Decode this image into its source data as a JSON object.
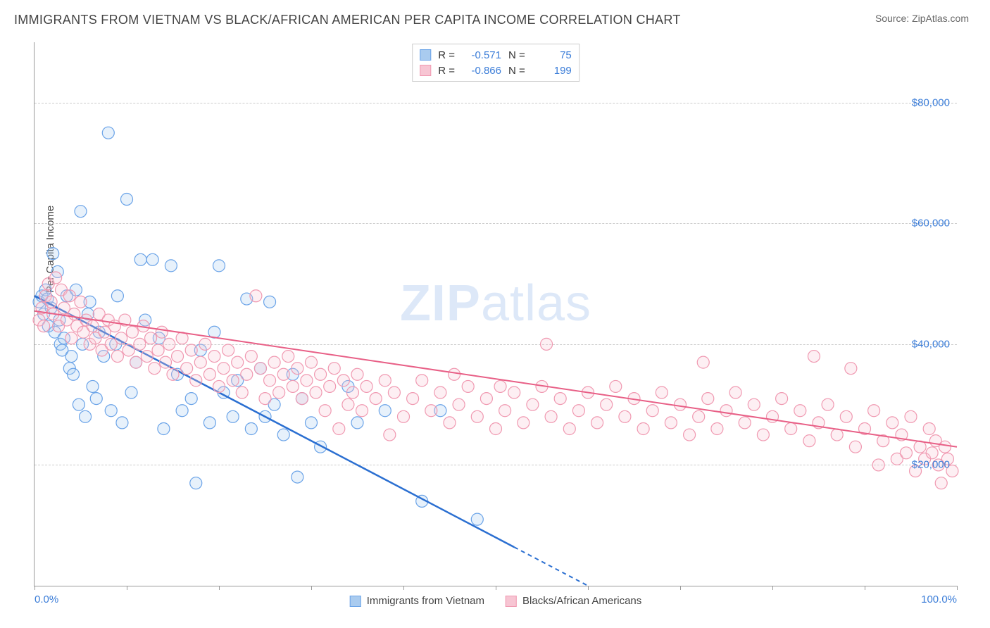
{
  "title": "IMMIGRANTS FROM VIETNAM VS BLACK/AFRICAN AMERICAN PER CAPITA INCOME CORRELATION CHART",
  "source": "Source: ZipAtlas.com",
  "watermark_parts": {
    "bold": "ZIP",
    "light": "atlas"
  },
  "ylabel": "Per Capita Income",
  "chart": {
    "type": "scatter",
    "xlim": [
      0,
      100
    ],
    "ylim": [
      0,
      90000
    ],
    "x_ticks": [
      0,
      10,
      20,
      30,
      40,
      50,
      60,
      70,
      80,
      90,
      100
    ],
    "y_ticks": [
      20000,
      40000,
      60000,
      80000
    ],
    "y_tick_labels": [
      "$20,000",
      "$40,000",
      "$60,000",
      "$80,000"
    ],
    "x_tick_label_left": "0.0%",
    "x_tick_label_right": "100.0%",
    "grid_color": "#cccccc",
    "axis_color": "#999999",
    "background_color": "#ffffff",
    "marker_radius": 8.5,
    "marker_stroke_width": 1.2,
    "marker_fill_opacity": 0.28,
    "series": [
      {
        "name": "Immigrants from Vietnam",
        "color_stroke": "#6aa3e8",
        "color_fill": "#a9cbef",
        "line_color": "#2b6fd1",
        "r_value": "-0.571",
        "n_value": "75",
        "regression": {
          "x1": 0,
          "y1": 48000,
          "x2": 60,
          "y2": 0,
          "dash_after_x": 52
        },
        "points": [
          [
            0.5,
            47000
          ],
          [
            0.8,
            48000
          ],
          [
            1.0,
            45000
          ],
          [
            1.2,
            49000
          ],
          [
            1.4,
            47500
          ],
          [
            1.5,
            43000
          ],
          [
            1.8,
            46000
          ],
          [
            2.0,
            55000
          ],
          [
            2.2,
            42000
          ],
          [
            2.5,
            52000
          ],
          [
            2.7,
            44000
          ],
          [
            2.8,
            40000
          ],
          [
            3.0,
            39000
          ],
          [
            3.2,
            41000
          ],
          [
            3.5,
            48000
          ],
          [
            3.8,
            36000
          ],
          [
            4.0,
            38000
          ],
          [
            4.2,
            35000
          ],
          [
            4.5,
            49000
          ],
          [
            4.8,
            30000
          ],
          [
            5.0,
            62000
          ],
          [
            5.2,
            40000
          ],
          [
            5.5,
            28000
          ],
          [
            5.8,
            45000
          ],
          [
            6.0,
            47000
          ],
          [
            6.3,
            33000
          ],
          [
            6.7,
            31000
          ],
          [
            7.0,
            42000
          ],
          [
            7.5,
            38000
          ],
          [
            8.0,
            75000
          ],
          [
            8.3,
            29000
          ],
          [
            8.8,
            40000
          ],
          [
            9.0,
            48000
          ],
          [
            9.5,
            27000
          ],
          [
            10.0,
            64000
          ],
          [
            10.5,
            32000
          ],
          [
            11.0,
            37000
          ],
          [
            11.5,
            54000
          ],
          [
            12.0,
            44000
          ],
          [
            12.8,
            54000
          ],
          [
            13.5,
            41000
          ],
          [
            14.0,
            26000
          ],
          [
            14.8,
            53000
          ],
          [
            15.5,
            35000
          ],
          [
            16.0,
            29000
          ],
          [
            17.0,
            31000
          ],
          [
            17.5,
            17000
          ],
          [
            18.0,
            39000
          ],
          [
            19.0,
            27000
          ],
          [
            19.5,
            42000
          ],
          [
            20.0,
            53000
          ],
          [
            20.5,
            32000
          ],
          [
            21.5,
            28000
          ],
          [
            22.0,
            34000
          ],
          [
            23.0,
            47500
          ],
          [
            23.5,
            26000
          ],
          [
            24.5,
            36000
          ],
          [
            25.0,
            28000
          ],
          [
            25.5,
            47000
          ],
          [
            26.0,
            30000
          ],
          [
            27.0,
            25000
          ],
          [
            28.0,
            35000
          ],
          [
            28.5,
            18000
          ],
          [
            29.0,
            31000
          ],
          [
            30.0,
            27000
          ],
          [
            31.0,
            23000
          ],
          [
            34.0,
            33000
          ],
          [
            35.0,
            27000
          ],
          [
            38.0,
            29000
          ],
          [
            42.0,
            14000
          ],
          [
            44.0,
            29000
          ],
          [
            48.0,
            11000
          ]
        ]
      },
      {
        "name": "Blacks/African Americans",
        "color_stroke": "#f099b1",
        "color_fill": "#f7c5d3",
        "line_color": "#e85f86",
        "r_value": "-0.866",
        "n_value": "199",
        "regression": {
          "x1": 0,
          "y1": 45500,
          "x2": 100,
          "y2": 23000
        },
        "points": [
          [
            0.5,
            44000
          ],
          [
            0.8,
            46000
          ],
          [
            1.0,
            43000
          ],
          [
            1.2,
            48000
          ],
          [
            1.5,
            50000
          ],
          [
            1.8,
            47000
          ],
          [
            2.0,
            45000
          ],
          [
            2.3,
            51000
          ],
          [
            2.6,
            43000
          ],
          [
            2.9,
            49000
          ],
          [
            3.2,
            46000
          ],
          [
            3.5,
            44000
          ],
          [
            3.8,
            48000
          ],
          [
            4.0,
            41000
          ],
          [
            4.3,
            45000
          ],
          [
            4.6,
            43000
          ],
          [
            5.0,
            47000
          ],
          [
            5.3,
            42000
          ],
          [
            5.6,
            44000
          ],
          [
            6.0,
            40000
          ],
          [
            6.3,
            43000
          ],
          [
            6.6,
            41000
          ],
          [
            7.0,
            45000
          ],
          [
            7.3,
            39000
          ],
          [
            7.6,
            42000
          ],
          [
            8.0,
            44000
          ],
          [
            8.3,
            40000
          ],
          [
            8.7,
            43000
          ],
          [
            9.0,
            38000
          ],
          [
            9.4,
            41000
          ],
          [
            9.8,
            44000
          ],
          [
            10.2,
            39000
          ],
          [
            10.6,
            42000
          ],
          [
            11.0,
            37000
          ],
          [
            11.4,
            40000
          ],
          [
            11.8,
            43000
          ],
          [
            12.2,
            38000
          ],
          [
            12.6,
            41000
          ],
          [
            13.0,
            36000
          ],
          [
            13.4,
            39000
          ],
          [
            13.8,
            42000
          ],
          [
            14.2,
            37000
          ],
          [
            14.6,
            40000
          ],
          [
            15.0,
            35000
          ],
          [
            15.5,
            38000
          ],
          [
            16.0,
            41000
          ],
          [
            16.5,
            36000
          ],
          [
            17.0,
            39000
          ],
          [
            17.5,
            34000
          ],
          [
            18.0,
            37000
          ],
          [
            18.5,
            40000
          ],
          [
            19.0,
            35000
          ],
          [
            19.5,
            38000
          ],
          [
            20.0,
            33000
          ],
          [
            20.5,
            36000
          ],
          [
            21.0,
            39000
          ],
          [
            21.5,
            34000
          ],
          [
            22.0,
            37000
          ],
          [
            22.5,
            32000
          ],
          [
            23.0,
            35000
          ],
          [
            23.5,
            38000
          ],
          [
            24.0,
            48000
          ],
          [
            24.5,
            36000
          ],
          [
            25.0,
            31000
          ],
          [
            25.5,
            34000
          ],
          [
            26.0,
            37000
          ],
          [
            26.5,
            32000
          ],
          [
            27.0,
            35000
          ],
          [
            27.5,
            38000
          ],
          [
            28.0,
            33000
          ],
          [
            28.5,
            36000
          ],
          [
            29.0,
            31000
          ],
          [
            29.5,
            34000
          ],
          [
            30.0,
            37000
          ],
          [
            30.5,
            32000
          ],
          [
            31.0,
            35000
          ],
          [
            31.5,
            29000
          ],
          [
            32.0,
            33000
          ],
          [
            32.5,
            36000
          ],
          [
            33.0,
            26000
          ],
          [
            33.5,
            34000
          ],
          [
            34.0,
            30000
          ],
          [
            34.5,
            32000
          ],
          [
            35.0,
            35000
          ],
          [
            35.5,
            29000
          ],
          [
            36.0,
            33000
          ],
          [
            37.0,
            31000
          ],
          [
            38.0,
            34000
          ],
          [
            38.5,
            25000
          ],
          [
            39.0,
            32000
          ],
          [
            40.0,
            28000
          ],
          [
            41.0,
            31000
          ],
          [
            42.0,
            34000
          ],
          [
            43.0,
            29000
          ],
          [
            44.0,
            32000
          ],
          [
            45.0,
            27000
          ],
          [
            45.5,
            35000
          ],
          [
            46.0,
            30000
          ],
          [
            47.0,
            33000
          ],
          [
            48.0,
            28000
          ],
          [
            49.0,
            31000
          ],
          [
            50.0,
            26000
          ],
          [
            50.5,
            33000
          ],
          [
            51.0,
            29000
          ],
          [
            52.0,
            32000
          ],
          [
            53.0,
            27000
          ],
          [
            54.0,
            30000
          ],
          [
            55.0,
            33000
          ],
          [
            55.5,
            40000
          ],
          [
            56.0,
            28000
          ],
          [
            57.0,
            31000
          ],
          [
            58.0,
            26000
          ],
          [
            59.0,
            29000
          ],
          [
            60.0,
            32000
          ],
          [
            61.0,
            27000
          ],
          [
            62.0,
            30000
          ],
          [
            63.0,
            33000
          ],
          [
            64.0,
            28000
          ],
          [
            65.0,
            31000
          ],
          [
            66.0,
            26000
          ],
          [
            67.0,
            29000
          ],
          [
            68.0,
            32000
          ],
          [
            69.0,
            27000
          ],
          [
            70.0,
            30000
          ],
          [
            71.0,
            25000
          ],
          [
            72.0,
            28000
          ],
          [
            72.5,
            37000
          ],
          [
            73.0,
            31000
          ],
          [
            74.0,
            26000
          ],
          [
            75.0,
            29000
          ],
          [
            76.0,
            32000
          ],
          [
            77.0,
            27000
          ],
          [
            78.0,
            30000
          ],
          [
            79.0,
            25000
          ],
          [
            80.0,
            28000
          ],
          [
            81.0,
            31000
          ],
          [
            82.0,
            26000
          ],
          [
            83.0,
            29000
          ],
          [
            84.0,
            24000
          ],
          [
            84.5,
            38000
          ],
          [
            85.0,
            27000
          ],
          [
            86.0,
            30000
          ],
          [
            87.0,
            25000
          ],
          [
            88.0,
            28000
          ],
          [
            88.5,
            36000
          ],
          [
            89.0,
            23000
          ],
          [
            90.0,
            26000
          ],
          [
            91.0,
            29000
          ],
          [
            91.5,
            20000
          ],
          [
            92.0,
            24000
          ],
          [
            93.0,
            27000
          ],
          [
            93.5,
            21000
          ],
          [
            94.0,
            25000
          ],
          [
            94.5,
            22000
          ],
          [
            95.0,
            28000
          ],
          [
            95.5,
            19000
          ],
          [
            96.0,
            23000
          ],
          [
            96.5,
            21000
          ],
          [
            97.0,
            26000
          ],
          [
            97.3,
            22000
          ],
          [
            97.7,
            24000
          ],
          [
            98.0,
            20000
          ],
          [
            98.3,
            17000
          ],
          [
            98.7,
            23000
          ],
          [
            99.0,
            21000
          ],
          [
            99.5,
            19000
          ]
        ]
      }
    ]
  }
}
